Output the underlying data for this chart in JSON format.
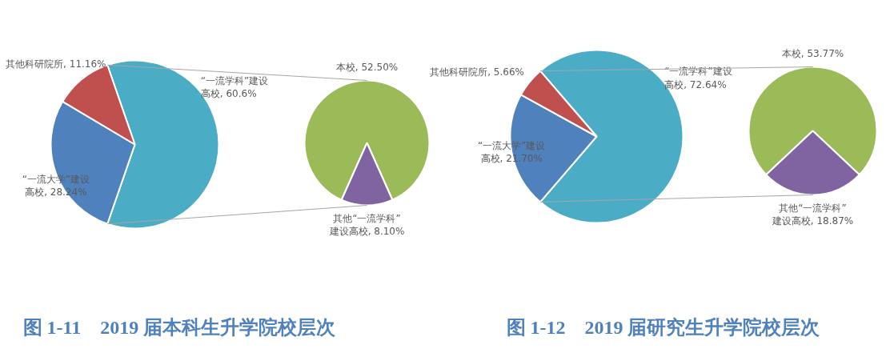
{
  "chart_data": [
    {
      "type": "pie",
      "title": "图 1-11　2019 届本科生升学院校层次",
      "categories": [
        "“一流学科”建设高校",
        "“一流大学”建设高校",
        "其他科研院所"
      ],
      "values": [
        60.6,
        28.24,
        11.16
      ],
      "colors": [
        "#4bacc6",
        "#4f81bd",
        "#c0504d"
      ],
      "value_labels": [
        "60.6%",
        "28.24%",
        "11.16%"
      ]
    },
    {
      "type": "pie",
      "categories": [
        "本校",
        "其他“一流学科”建设高校"
      ],
      "values": [
        52.5,
        8.1
      ],
      "colors": [
        "#9bbb59",
        "#8064a2"
      ],
      "value_labels": [
        "52.50%",
        "8.10%"
      ]
    },
    {
      "type": "pie",
      "title": "图 1-12　2019 届研究生升学院校层次",
      "categories": [
        "“一流学科”建设高校",
        "“一流大学”建设高校",
        "其他科研院所"
      ],
      "values": [
        72.64,
        21.7,
        5.66
      ],
      "colors": [
        "#4bacc6",
        "#4f81bd",
        "#c0504d"
      ],
      "value_labels": [
        "72.64%",
        "21.70%",
        "5.66%"
      ]
    },
    {
      "type": "pie",
      "categories": [
        "本校",
        "其他“一流学科”建设高校"
      ],
      "values": [
        53.77,
        18.87
      ],
      "colors": [
        "#9bbb59",
        "#8064a2"
      ],
      "value_labels": [
        "53.77%",
        "18.87%"
      ]
    }
  ]
}
